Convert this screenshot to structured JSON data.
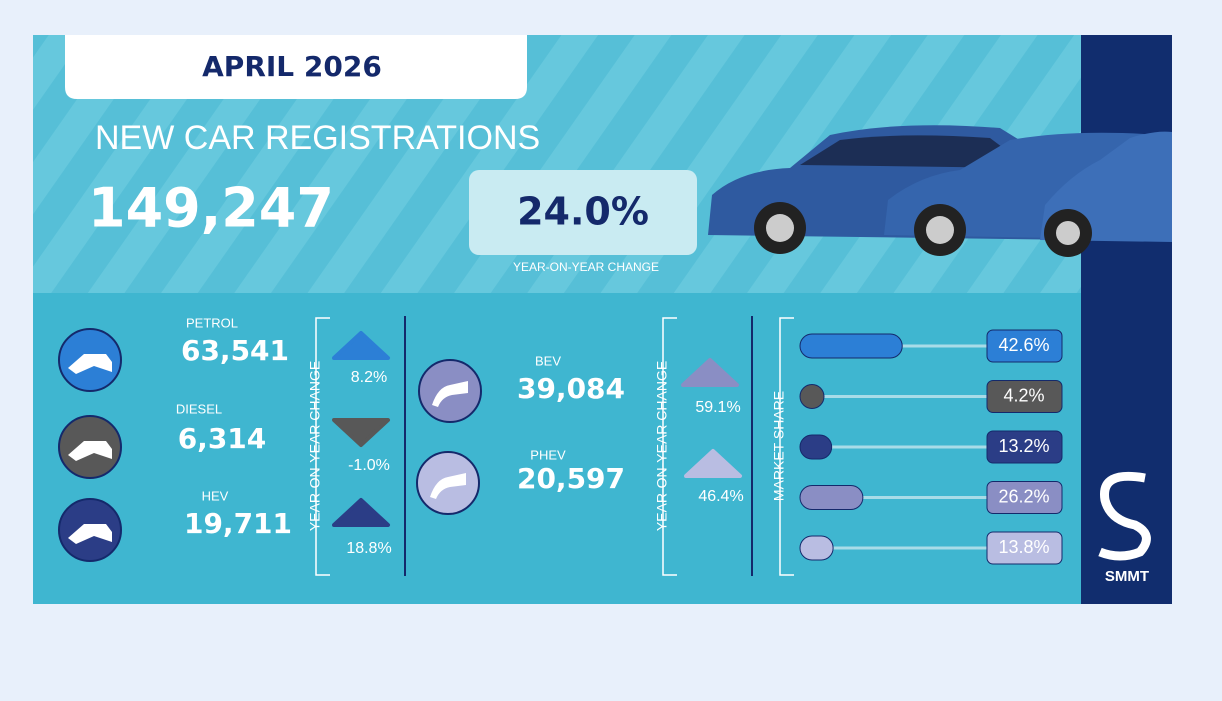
{
  "header": {
    "title": "APRIL 2026"
  },
  "headline": {
    "label": "NEW CAR REGISTRATIONS",
    "total": "149,247",
    "change": "24.0%",
    "change_label": "YEAR-ON-YEAR CHANGE"
  },
  "fuels": [
    {
      "name": "PETROL",
      "registrations": "63,541",
      "change": "8.2%",
      "direction": "up",
      "color": "#2c7fd6"
    },
    {
      "name": "DIESEL",
      "registrations": "6,314",
      "change": "-1.0%",
      "direction": "down",
      "color": "#585858"
    },
    {
      "name": "HEV",
      "registrations": "19,711",
      "change": "18.8%",
      "direction": "up",
      "color": "#2b3d86"
    },
    {
      "name": "BEV",
      "registrations": "39,084",
      "change": "59.1%",
      "direction": "up",
      "color": "#8a8ec4"
    },
    {
      "name": "PHEV",
      "registrations": "20,597",
      "change": "46.4%",
      "direction": "up",
      "color": "#b9bde2"
    }
  ],
  "yoy_axis_label": "YEAR-ON-YEAR CHANGE",
  "market_share": {
    "label": "MARKET SHARE",
    "values": [
      42.6,
      4.2,
      13.2,
      26.2,
      13.8
    ],
    "value_labels": [
      "42.6%",
      "4.2%",
      "13.2%",
      "26.2%",
      "13.8%"
    ]
  },
  "logo": "SMMT"
}
